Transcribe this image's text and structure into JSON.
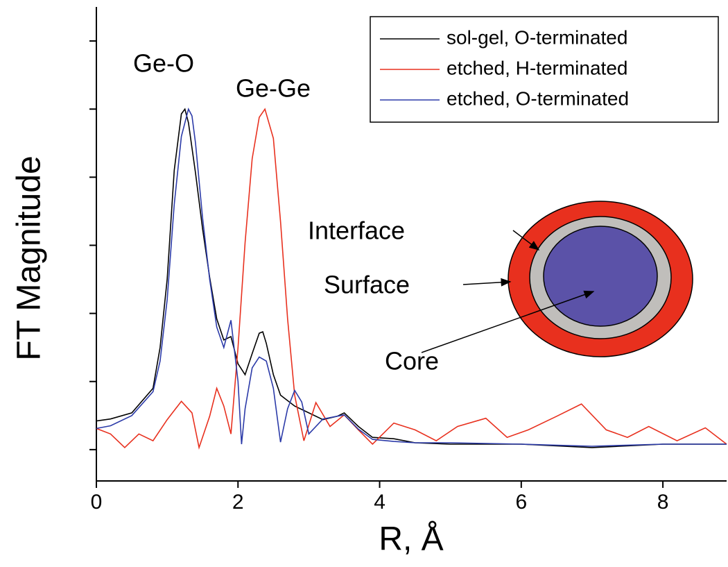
{
  "chart_data": {
    "type": "line",
    "xlabel": "R, Å",
    "ylabel": "FT Magnitude",
    "xlim": [
      0,
      8.9
    ],
    "ylim": [
      -0.46,
      6.5
    ],
    "xticks": [
      0,
      2,
      4,
      6,
      8
    ],
    "yticks": [
      0,
      1,
      2,
      3,
      4,
      5,
      6
    ],
    "legend": "upper right",
    "annotations": [
      "Ge-O",
      "Ge-Ge",
      "Interface",
      "Surface",
      "Core"
    ],
    "series": [
      {
        "name": "sol-gel, O-terminated",
        "color": "#000000",
        "x": [
          0,
          0.2,
          0.5,
          0.8,
          0.9,
          1.0,
          1.1,
          1.2,
          1.25,
          1.3,
          1.4,
          1.5,
          1.6,
          1.7,
          1.8,
          1.9,
          2.0,
          2.1,
          2.2,
          2.3,
          2.35,
          2.4,
          2.5,
          2.6,
          2.8,
          3.0,
          3.2,
          3.4,
          3.5,
          3.7,
          3.9,
          4.2,
          4.5,
          5.0,
          6.0,
          7.0,
          8.0,
          8.9
        ],
        "values": [
          0.42,
          0.45,
          0.54,
          0.9,
          1.5,
          2.5,
          4.1,
          4.93,
          5.0,
          4.8,
          4.06,
          3.24,
          2.53,
          1.92,
          1.61,
          1.66,
          1.26,
          1.1,
          1.41,
          1.71,
          1.73,
          1.56,
          1.1,
          0.8,
          0.64,
          0.54,
          0.44,
          0.49,
          0.54,
          0.34,
          0.18,
          0.16,
          0.1,
          0.08,
          0.08,
          0.03,
          0.08,
          0.08
        ]
      },
      {
        "name": "etched, H-terminated",
        "color": "#e8301e",
        "x": [
          0,
          0.2,
          0.4,
          0.6,
          0.8,
          1.0,
          1.2,
          1.35,
          1.45,
          1.6,
          1.7,
          1.8,
          1.9,
          2.0,
          2.1,
          2.2,
          2.3,
          2.38,
          2.5,
          2.6,
          2.7,
          2.8,
          2.93,
          3.1,
          3.3,
          3.5,
          3.7,
          3.9,
          4.2,
          4.5,
          4.8,
          5.1,
          5.5,
          5.8,
          6.1,
          6.5,
          6.85,
          7.2,
          7.5,
          7.8,
          8.2,
          8.6,
          8.9
        ],
        "values": [
          0.31,
          0.23,
          0.03,
          0.23,
          0.13,
          0.44,
          0.71,
          0.54,
          0.03,
          0.49,
          0.9,
          0.64,
          0.23,
          1.5,
          3.04,
          4.27,
          4.88,
          5.0,
          4.57,
          3.35,
          1.92,
          0.8,
          0.13,
          0.69,
          0.34,
          0.51,
          0.29,
          0.08,
          0.39,
          0.29,
          0.13,
          0.34,
          0.46,
          0.18,
          0.29,
          0.49,
          0.67,
          0.29,
          0.18,
          0.34,
          0.13,
          0.32,
          0.08
        ]
      },
      {
        "name": "etched, O-terminated",
        "color": "#2b3aa8",
        "x": [
          0,
          0.2,
          0.5,
          0.8,
          0.9,
          1.0,
          1.1,
          1.2,
          1.3,
          1.35,
          1.4,
          1.5,
          1.6,
          1.7,
          1.8,
          1.9,
          2.0,
          2.05,
          2.1,
          2.2,
          2.3,
          2.4,
          2.5,
          2.6,
          2.7,
          2.8,
          2.9,
          3.0,
          3.2,
          3.5,
          3.7,
          3.9,
          4.2,
          4.5,
          5.0,
          6.0,
          7.0,
          8.0,
          8.9
        ],
        "values": [
          0.31,
          0.35,
          0.5,
          0.85,
          1.3,
          2.2,
          3.6,
          4.6,
          5.0,
          4.9,
          4.5,
          3.4,
          2.5,
          1.8,
          1.5,
          1.9,
          1.0,
          0.08,
          0.6,
          1.2,
          1.36,
          1.3,
          0.9,
          0.11,
          0.6,
          0.87,
          0.7,
          0.23,
          0.45,
          0.51,
          0.3,
          0.15,
          0.12,
          0.1,
          0.1,
          0.08,
          0.05,
          0.08,
          0.08
        ]
      }
    ]
  }
}
